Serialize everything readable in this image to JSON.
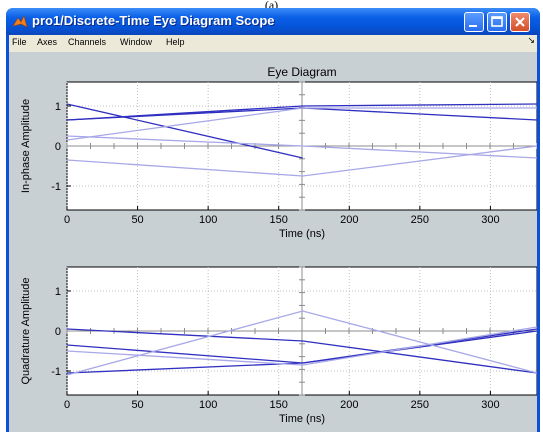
{
  "caption": "(a)",
  "window": {
    "title": "pro1/Discrete-Time Eye Diagram Scope"
  },
  "menu": {
    "items": [
      "File",
      "Axes",
      "Channels",
      "Window",
      "Help"
    ],
    "end_glyph": "↘"
  },
  "colors": {
    "titlebar": "#0a5fe6",
    "canvas": "#c8d0d4",
    "trace_dark": "#3030c0",
    "trace_light": "#a8a8e8"
  },
  "icons": {
    "app": "matlab-icon",
    "minimize": "minimize-icon",
    "maximize": "maximize-icon",
    "close": "close-icon"
  },
  "chart_data": [
    {
      "type": "line",
      "title": "Eye Diagram",
      "xlabel": "Time (ns)",
      "ylabel": "In-phase Amplitude",
      "xlim": [
        0,
        333
      ],
      "ylim": [
        -1.6,
        1.6
      ],
      "xticks": [
        0,
        50,
        100,
        150,
        200,
        250,
        300
      ],
      "yticks": [
        -1,
        0,
        1
      ],
      "series": [
        {
          "x": [
            0,
            167,
            333
          ],
          "values": [
            0.65,
            0.95,
            0.65
          ],
          "shade": "dark"
        },
        {
          "x": [
            0,
            167,
            333
          ],
          "values": [
            0.65,
            1.0,
            1.05
          ],
          "shade": "dark"
        },
        {
          "x": [
            0,
            167
          ],
          "values": [
            1.05,
            -0.3
          ],
          "shade": "dark"
        },
        {
          "x": [
            0,
            167,
            333
          ],
          "values": [
            0.15,
            0.95,
            0.95
          ],
          "shade": "light"
        },
        {
          "x": [
            0,
            167,
            333
          ],
          "values": [
            -0.35,
            -0.75,
            0.0
          ],
          "shade": "light"
        },
        {
          "x": [
            0,
            167,
            333
          ],
          "values": [
            0.25,
            0.0,
            -0.3
          ],
          "shade": "light"
        }
      ]
    },
    {
      "type": "line",
      "title": "",
      "xlabel": "Time (ns)",
      "ylabel": "Quadrature Amplitude",
      "xlim": [
        0,
        333
      ],
      "ylim": [
        -1.6,
        1.6
      ],
      "xticks": [
        0,
        50,
        100,
        150,
        200,
        250,
        300
      ],
      "yticks": [
        -1,
        0,
        1
      ],
      "series": [
        {
          "x": [
            0,
            167,
            333
          ],
          "values": [
            0.05,
            -0.25,
            -1.05
          ],
          "shade": "dark"
        },
        {
          "x": [
            0,
            167,
            333
          ],
          "values": [
            -1.05,
            -0.8,
            0.0
          ],
          "shade": "dark"
        },
        {
          "x": [
            0,
            167,
            333
          ],
          "values": [
            -0.35,
            -0.8,
            0.05
          ],
          "shade": "dark"
        },
        {
          "x": [
            0,
            167,
            333
          ],
          "values": [
            -1.1,
            0.5,
            -1.05
          ],
          "shade": "light"
        },
        {
          "x": [
            0,
            167,
            333
          ],
          "values": [
            -0.5,
            -0.85,
            0.1
          ],
          "shade": "light"
        }
      ]
    }
  ]
}
